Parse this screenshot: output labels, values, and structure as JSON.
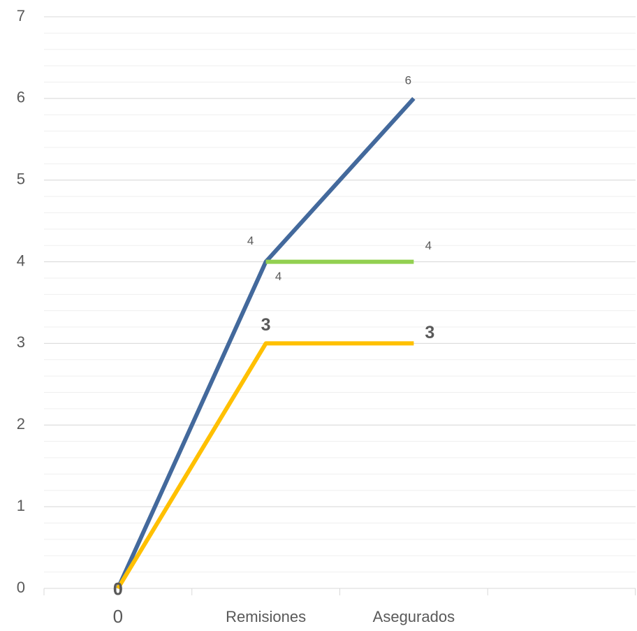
{
  "chart_data": {
    "type": "line",
    "categories": [
      "0",
      "Remisiones",
      "Asegurados",
      null
    ],
    "series": [
      {
        "color": "#43699c",
        "values": [
          0,
          4,
          6,
          null
        ]
      },
      {
        "color": "#92d050",
        "values": [
          null,
          4,
          4,
          null
        ]
      },
      {
        "color": "#ffc000",
        "values": [
          0,
          3,
          3,
          null
        ]
      }
    ],
    "ylim": [
      0,
      7
    ],
    "yticks": [
      0,
      1,
      2,
      3,
      4,
      5,
      6,
      7
    ],
    "grid": true,
    "minor_grid_step": 0.2,
    "data_labels": true
  }
}
